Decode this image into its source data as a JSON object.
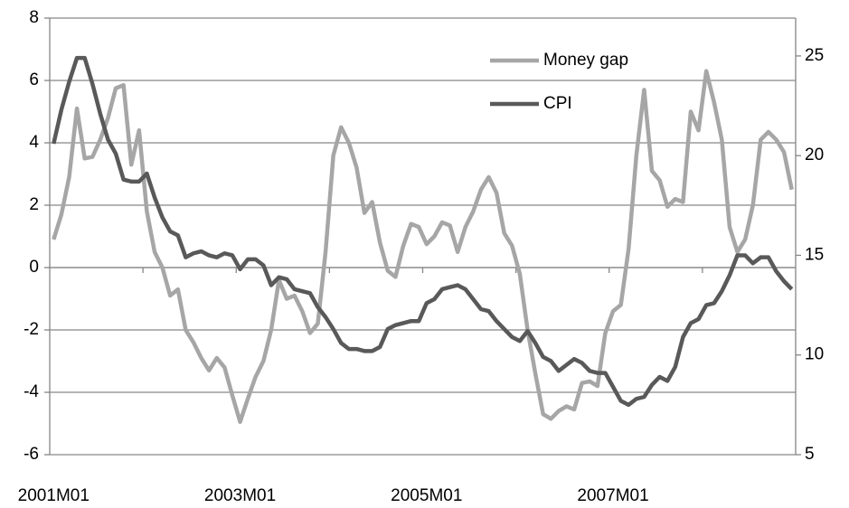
{
  "chart_data": {
    "type": "line",
    "categories": [
      "2001M01",
      null,
      null,
      null,
      null,
      null,
      null,
      null,
      null,
      null,
      null,
      null,
      null,
      null,
      null,
      null,
      null,
      null,
      null,
      null,
      null,
      null,
      null,
      null,
      "2003M01",
      null,
      null,
      null,
      null,
      null,
      null,
      null,
      null,
      null,
      null,
      null,
      null,
      null,
      null,
      null,
      null,
      null,
      null,
      null,
      null,
      null,
      null,
      null,
      "2005M01",
      null,
      null,
      null,
      null,
      null,
      null,
      null,
      null,
      null,
      null,
      null,
      null,
      null,
      null,
      null,
      null,
      null,
      null,
      null,
      null,
      null,
      null,
      null,
      "2007M01",
      null,
      null,
      null,
      null,
      null,
      null,
      null,
      null,
      null,
      null,
      null,
      null,
      null,
      null,
      null,
      null,
      null,
      null,
      null,
      null,
      null,
      null,
      null
    ],
    "series": [
      {
        "name": "Money gap",
        "color": "#a6a6a6",
        "values": [
          0.9,
          1.7,
          2.9,
          5.1,
          3.5,
          3.55,
          4.1,
          4.8,
          5.75,
          5.85,
          3.3,
          4.4,
          1.8,
          0.5,
          0,
          -0.9,
          -0.7,
          -2,
          -2.4,
          -2.9,
          -3.3,
          -2.9,
          -3.2,
          -4.1,
          -4.95,
          -4.2,
          -3.5,
          -3,
          -2,
          -0.4,
          -1,
          -0.9,
          -1.4,
          -2.1,
          -1.8,
          0.5,
          3.6,
          4.5,
          4,
          3.2,
          1.75,
          2.1,
          0.8,
          -0.1,
          -0.3,
          0.7,
          1.4,
          1.3,
          0.75,
          1.0,
          1.45,
          1.35,
          0.5,
          1.3,
          1.8,
          2.5,
          2.9,
          2.4,
          1.1,
          0.7,
          -0.2,
          -2,
          -3.4,
          -4.7,
          -4.85,
          -4.6,
          -4.45,
          -4.55,
          -3.7,
          -3.65,
          -3.8,
          -2.1,
          -1.4,
          -1.2,
          0.6,
          3.6,
          5.7,
          3.1,
          2.8,
          1.95,
          2.2,
          2.1,
          5.0,
          4.4,
          6.3,
          5.3,
          4.1,
          1.3,
          0.5,
          0.9,
          2,
          4.1,
          4.35,
          4.1,
          3.7,
          2.5
        ]
      },
      {
        "name": "CPI",
        "color": "#595959",
        "axis": "y2",
        "values": [
          20.6,
          22.3,
          23.7,
          24.9,
          24.9,
          23.6,
          22.1,
          20.8,
          20.1,
          18.8,
          18.7,
          18.7,
          19.1,
          17.9,
          16.9,
          16.2,
          16.0,
          14.9,
          15.1,
          15.2,
          15.0,
          14.9,
          15.1,
          15.0,
          14.3,
          14.8,
          14.8,
          14.5,
          13.5,
          13.9,
          13.8,
          13.3,
          13.2,
          13.1,
          12.4,
          11.9,
          11.3,
          10.6,
          10.3,
          10.3,
          10.2,
          10.2,
          10.4,
          11.3,
          11.5,
          11.6,
          11.7,
          11.7,
          12.6,
          12.8,
          13.3,
          13.4,
          13.5,
          13.3,
          12.8,
          12.3,
          12.2,
          11.7,
          11.3,
          10.9,
          10.7,
          11.2,
          10.6,
          9.9,
          9.7,
          9.2,
          9.5,
          9.8,
          9.6,
          9.2,
          9.1,
          9.1,
          8.4,
          7.7,
          7.5,
          7.8,
          7.9,
          8.5,
          8.9,
          8.7,
          9.4,
          10.9,
          11.6,
          11.8,
          12.5,
          12.6,
          13.2,
          14.0,
          15.0,
          15.0,
          14.6,
          14.9,
          14.9,
          14.2,
          13.7,
          13.3
        ]
      }
    ],
    "ylim": [
      -6,
      8
    ],
    "yticks": [
      -6,
      -4,
      -2,
      0,
      2,
      4,
      6,
      8
    ],
    "y2lim": [
      5,
      26.9
    ],
    "y2ticks": [
      5,
      10,
      15,
      20,
      25
    ],
    "grid": true
  }
}
